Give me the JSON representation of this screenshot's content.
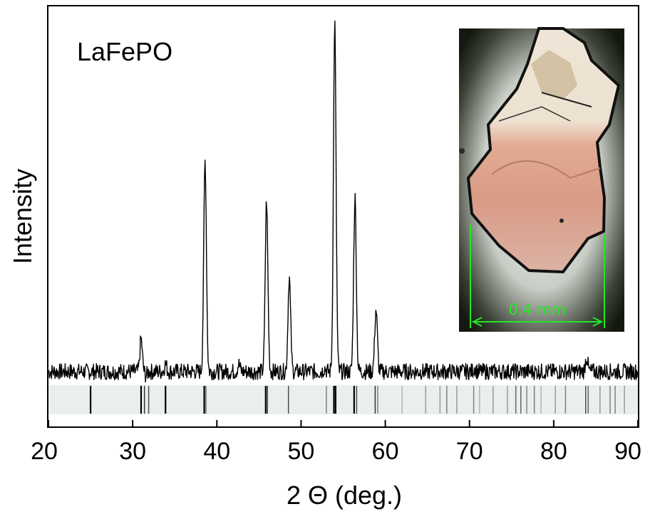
{
  "chart_data": {
    "type": "line",
    "sample_label": "LaFePO",
    "xlabel": "2 Θ (deg.)",
    "ylabel": "Intensity",
    "xlim": [
      20,
      90
    ],
    "x_ticks": [
      20,
      30,
      40,
      50,
      60,
      70,
      80,
      90
    ],
    "ylim": [
      0,
      1
    ],
    "baseline": 0.04,
    "peaks": [
      {
        "x": 31.0,
        "y": 0.13
      },
      {
        "x": 31.6,
        "y": 0.03
      },
      {
        "x": 33.9,
        "y": 0.06
      },
      {
        "x": 38.6,
        "y": 0.62
      },
      {
        "x": 42.6,
        "y": 0.06
      },
      {
        "x": 45.9,
        "y": 0.51
      },
      {
        "x": 48.6,
        "y": 0.3
      },
      {
        "x": 52.8,
        "y": 0.05
      },
      {
        "x": 54.0,
        "y": 1.0
      },
      {
        "x": 56.4,
        "y": 0.52
      },
      {
        "x": 58.9,
        "y": 0.21
      },
      {
        "x": 70.6,
        "y": 0.05
      },
      {
        "x": 83.9,
        "y": 0.08
      }
    ],
    "reference_lines": [
      {
        "x": 25.0,
        "s": 1.0
      },
      {
        "x": 31.0,
        "s": 1.0
      },
      {
        "x": 31.4,
        "s": 0.8
      },
      {
        "x": 31.9,
        "s": 0.7
      },
      {
        "x": 33.9,
        "s": 1.0
      },
      {
        "x": 38.5,
        "s": 1.0
      },
      {
        "x": 38.7,
        "s": 0.6
      },
      {
        "x": 45.8,
        "s": 1.0
      },
      {
        "x": 46.0,
        "s": 0.8
      },
      {
        "x": 48.5,
        "s": 0.7
      },
      {
        "x": 53.0,
        "s": 0.5
      },
      {
        "x": 53.9,
        "s": 1.0
      },
      {
        "x": 54.1,
        "s": 1.0
      },
      {
        "x": 56.3,
        "s": 1.0
      },
      {
        "x": 56.6,
        "s": 0.7
      },
      {
        "x": 58.8,
        "s": 0.8
      },
      {
        "x": 59.1,
        "s": 0.5
      },
      {
        "x": 62.0,
        "s": 0.3
      },
      {
        "x": 64.8,
        "s": 0.4
      },
      {
        "x": 66.5,
        "s": 0.4
      },
      {
        "x": 67.3,
        "s": 0.5
      },
      {
        "x": 68.5,
        "s": 0.4
      },
      {
        "x": 70.5,
        "s": 0.5
      },
      {
        "x": 71.2,
        "s": 0.3
      },
      {
        "x": 72.8,
        "s": 0.4
      },
      {
        "x": 74.5,
        "s": 0.4
      },
      {
        "x": 75.5,
        "s": 0.6
      },
      {
        "x": 76.1,
        "s": 0.6
      },
      {
        "x": 76.8,
        "s": 0.5
      },
      {
        "x": 77.7,
        "s": 0.5
      },
      {
        "x": 78.5,
        "s": 0.3
      },
      {
        "x": 80.2,
        "s": 0.4
      },
      {
        "x": 81.4,
        "s": 0.5
      },
      {
        "x": 83.8,
        "s": 0.7
      },
      {
        "x": 84.1,
        "s": 0.6
      },
      {
        "x": 85.5,
        "s": 0.4
      },
      {
        "x": 86.7,
        "s": 0.5
      },
      {
        "x": 87.3,
        "s": 0.5
      },
      {
        "x": 88.4,
        "s": 0.4
      }
    ],
    "grid": false,
    "line_color": "#000000",
    "reference_strip_color": "#eaefed"
  },
  "inset": {
    "scale_bar_label": "0.4 mm",
    "scale_bar_color": "#22e822"
  }
}
